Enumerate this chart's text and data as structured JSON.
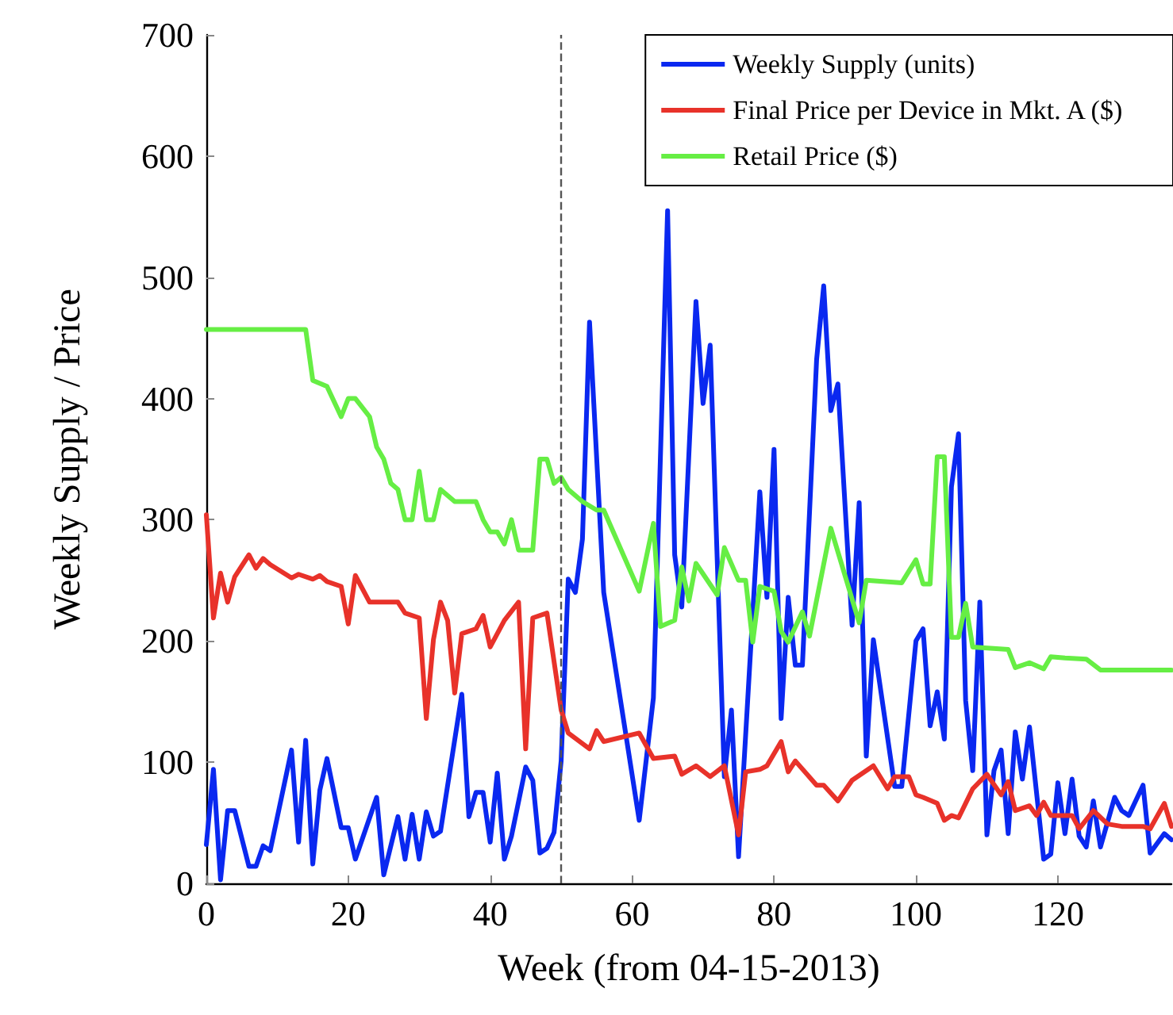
{
  "chart_data": {
    "type": "line",
    "xlabel": "Week (from 04-15-2013)",
    "ylabel": "Weekly Supply / Price",
    "xlim": [
      0,
      136
    ],
    "xticks": [
      0,
      20,
      40,
      60,
      80,
      100,
      120
    ],
    "ylim": [
      0,
      700
    ],
    "yticks": [
      0,
      100,
      200,
      300,
      400,
      500,
      600,
      700
    ],
    "grid": false,
    "legend": "top right",
    "marker": "none",
    "line_style": "solid",
    "ref_lines": [
      {
        "axis": "x",
        "value": 50,
        "color": "#555555",
        "line_style": "dashed"
      }
    ],
    "series": [
      {
        "name": "Weekly Supply (units)",
        "color": "#0a28f0",
        "x": [
          0,
          1,
          2,
          3,
          4,
          6,
          7,
          8,
          9,
          12,
          13,
          14,
          15,
          16,
          17,
          19,
          20,
          21,
          24,
          25,
          27,
          28,
          29,
          30,
          31,
          32,
          33,
          36,
          37,
          38,
          39,
          40,
          41,
          42,
          43,
          45,
          46,
          47,
          48,
          49,
          50,
          51,
          52,
          53,
          54,
          56,
          61,
          63,
          65,
          66,
          67,
          69,
          70,
          71,
          73,
          74,
          75,
          78,
          79,
          80,
          81,
          82,
          83,
          84,
          86,
          87,
          88,
          89,
          91,
          92,
          93,
          94,
          97,
          98,
          100,
          101,
          102,
          103,
          104,
          105,
          106,
          107,
          108,
          109,
          110,
          111,
          112,
          113,
          114,
          115,
          116,
          118,
          119,
          120,
          121,
          122,
          123,
          124,
          125,
          126,
          128,
          129,
          130,
          132,
          133,
          135,
          136
        ],
        "values": [
          32,
          94,
          3,
          60,
          60,
          14,
          14,
          31,
          27,
          110,
          34,
          118,
          16,
          77,
          103,
          46,
          46,
          20,
          71,
          7,
          55,
          20,
          57,
          20,
          59,
          39,
          43,
          156,
          55,
          75,
          75,
          34,
          91,
          20,
          39,
          96,
          85,
          25,
          29,
          42,
          101,
          251,
          240,
          284,
          463,
          240,
          52,
          153,
          555,
          271,
          228,
          480,
          396,
          444,
          88,
          143,
          22,
          323,
          236,
          358,
          136,
          236,
          180,
          180,
          432,
          493,
          390,
          412,
          213,
          314,
          105,
          201,
          80,
          80,
          200,
          210,
          130,
          158,
          119,
          327,
          371,
          151,
          93,
          232,
          40,
          93,
          110,
          41,
          125,
          86,
          129,
          20,
          24,
          83,
          41,
          86,
          39,
          30,
          68,
          30,
          71,
          60,
          56,
          81,
          25,
          41,
          36
        ]
      },
      {
        "name": "Final Price per Device in Mkt. A ($)",
        "color": "#e8322a",
        "x": [
          0,
          1,
          2,
          3,
          4,
          6,
          7,
          8,
          9,
          12,
          13,
          15,
          16,
          17,
          19,
          20,
          21,
          23,
          27,
          28,
          30,
          31,
          32,
          33,
          34,
          35,
          36,
          38,
          39,
          40,
          42,
          44,
          45,
          46,
          48,
          50,
          51,
          54,
          55,
          56,
          61,
          63,
          66,
          67,
          69,
          71,
          73,
          75,
          76,
          78,
          79,
          81,
          82,
          83,
          86,
          87,
          89,
          91,
          94,
          96,
          97,
          99,
          100,
          101,
          103,
          104,
          105,
          106,
          107,
          108,
          110,
          112,
          113,
          114,
          116,
          117,
          118,
          119,
          122,
          123,
          125,
          127,
          129,
          132,
          133,
          135,
          136
        ],
        "values": [
          304,
          219,
          256,
          232,
          253,
          271,
          260,
          268,
          263,
          252,
          255,
          251,
          254,
          249,
          245,
          214,
          254,
          232,
          232,
          223,
          219,
          136,
          201,
          232,
          217,
          157,
          206,
          210,
          221,
          195,
          217,
          232,
          111,
          219,
          223,
          143,
          124,
          111,
          126,
          117,
          124,
          103,
          105,
          90,
          97,
          88,
          97,
          40,
          92,
          94,
          97,
          117,
          92,
          101,
          81,
          81,
          68,
          85,
          97,
          78,
          88,
          88,
          73,
          71,
          66,
          52,
          56,
          54,
          66,
          78,
          90,
          73,
          84,
          60,
          64,
          56,
          67,
          56,
          56,
          45,
          60,
          49,
          47,
          47,
          45,
          66,
          47
        ]
      },
      {
        "name": "Retail Price ($)",
        "color": "#66ee44",
        "x": [
          0,
          14,
          15,
          17,
          19,
          20,
          21,
          23,
          24,
          25,
          26,
          27,
          28,
          29,
          30,
          31,
          32,
          33,
          35,
          38,
          39,
          40,
          41,
          42,
          43,
          44,
          46,
          47,
          48,
          49,
          50,
          51,
          53,
          55,
          56,
          61,
          63,
          64,
          66,
          67,
          68,
          69,
          72,
          73,
          75,
          76,
          77,
          78,
          80,
          81,
          82,
          84,
          85,
          88,
          92,
          93,
          98,
          100,
          101,
          102,
          103,
          104,
          105,
          106,
          107,
          108,
          113,
          114,
          116,
          118,
          119,
          121,
          124,
          126,
          136
        ],
        "values": [
          457,
          457,
          415,
          410,
          385,
          400,
          400,
          385,
          360,
          350,
          330,
          325,
          300,
          300,
          340,
          300,
          300,
          325,
          315,
          315,
          300,
          290,
          290,
          280,
          300,
          275,
          275,
          350,
          350,
          330,
          335,
          325,
          315,
          308,
          308,
          241,
          297,
          212,
          217,
          261,
          233,
          264,
          238,
          277,
          250,
          250,
          199,
          245,
          241,
          208,
          199,
          224,
          204,
          293,
          215,
          250,
          248,
          267,
          247,
          247,
          352,
          352,
          203,
          203,
          231,
          195,
          193,
          178,
          182,
          177,
          187,
          186,
          185,
          176,
          176
        ]
      }
    ]
  }
}
